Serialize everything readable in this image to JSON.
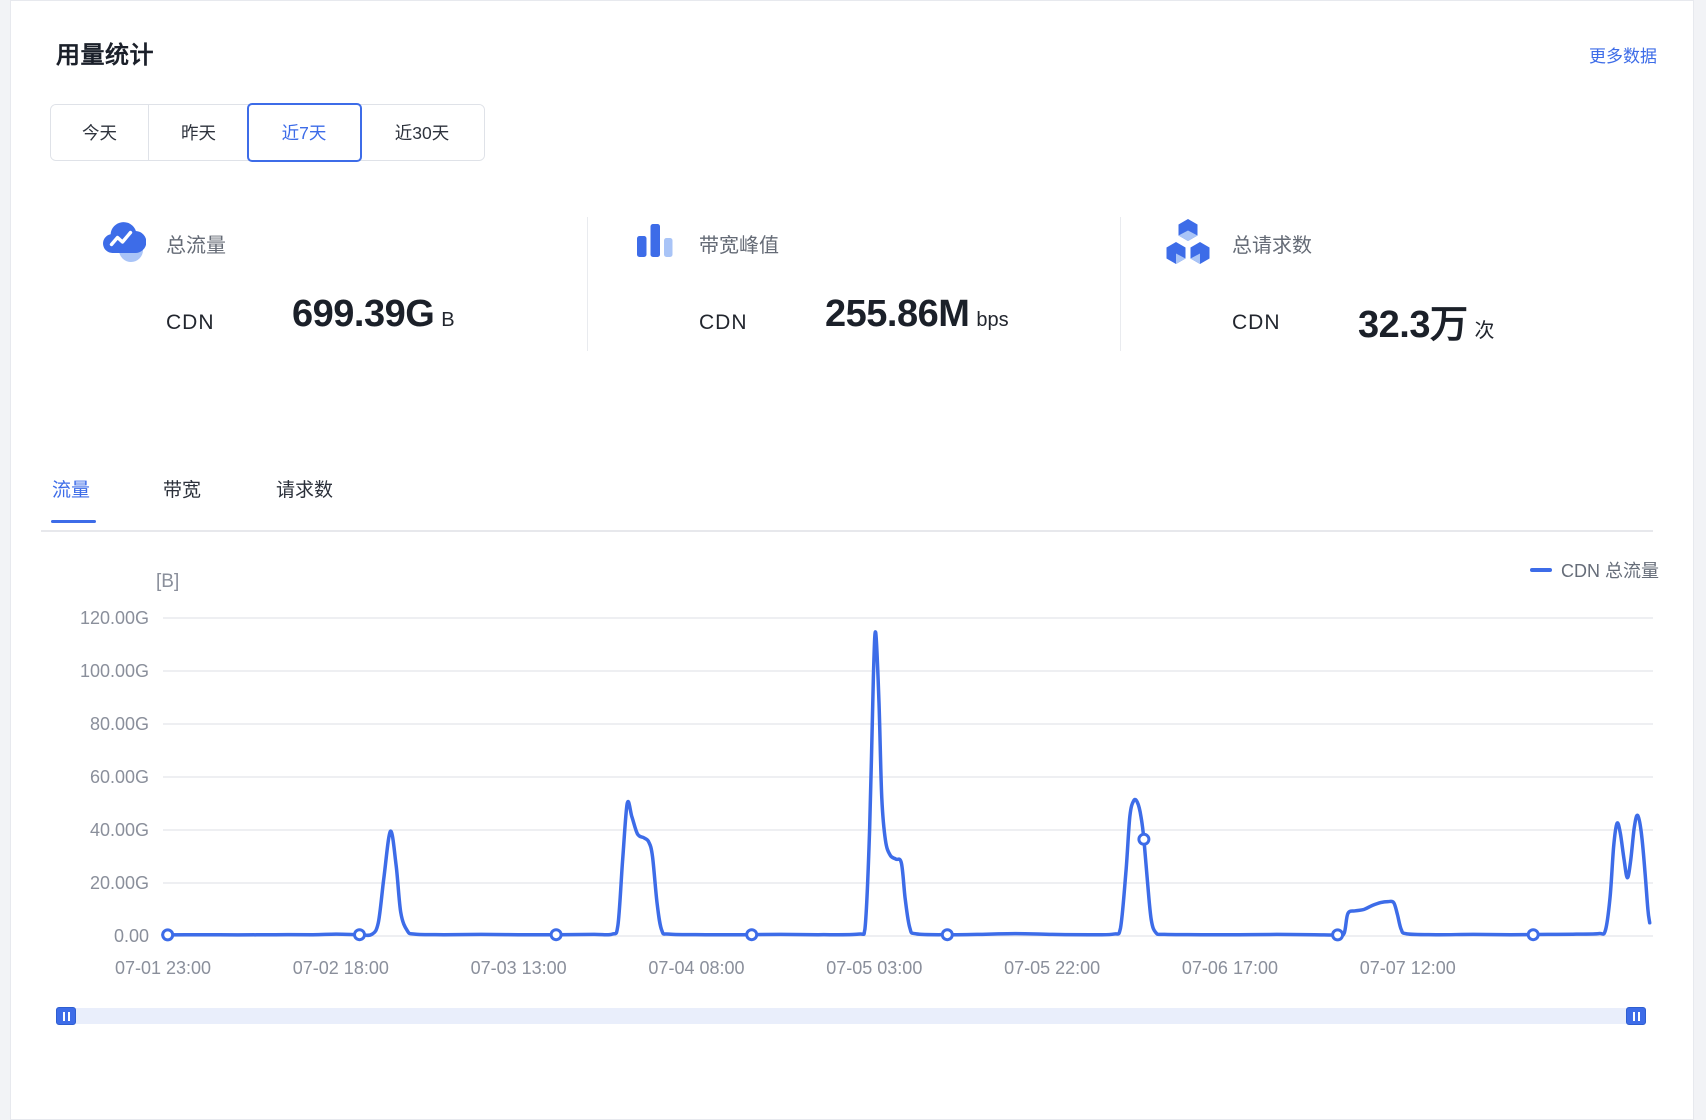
{
  "header": {
    "title": "用量统计",
    "more_link": "更多数据"
  },
  "range_tabs": [
    {
      "label": "今天",
      "selected": false
    },
    {
      "label": "昨天",
      "selected": false
    },
    {
      "label": "近7天",
      "selected": true
    },
    {
      "label": "近30天",
      "selected": false
    }
  ],
  "stats": [
    {
      "icon": "cloud-line-chart-icon",
      "label": "总流量",
      "product": "CDN",
      "value": "699.39G",
      "unit": "B"
    },
    {
      "icon": "bar-chart-icon",
      "label": "带宽峰值",
      "product": "CDN",
      "value": "255.86M",
      "unit": "bps"
    },
    {
      "icon": "cubes-icon",
      "label": "总请求数",
      "product": "CDN",
      "value": "32.3万",
      "unit": "次"
    }
  ],
  "metric_tabs": [
    {
      "label": "流量",
      "selected": true
    },
    {
      "label": "带宽",
      "selected": false
    },
    {
      "label": "请求数",
      "selected": false
    }
  ],
  "chart_data": {
    "type": "line",
    "unit_label": "[B]",
    "value_unit": "GB",
    "grid": true,
    "legend_position": "top-right",
    "legend": [
      {
        "name": "CDN 总流量",
        "color": "#3D6CE8"
      }
    ],
    "y_axis": {
      "min": 0,
      "max": 120,
      "tick_labels": [
        "0.00",
        "20.00G",
        "40.00G",
        "60.00G",
        "80.00G",
        "100.00G",
        "120.00G"
      ]
    },
    "x_axis": {
      "tick_labels": [
        "07-01 23:00",
        "07-02 18:00",
        "07-03 13:00",
        "07-04 08:00",
        "07-05 03:00",
        "07-05 22:00",
        "07-06 17:00",
        "07-07 12:00"
      ],
      "tick_interval_hours": 19,
      "total_hours": 159.2
    },
    "series": [
      {
        "name": "CDN 总流量",
        "color": "#3D6CE8",
        "points": [
          [
            0,
            0.4
          ],
          [
            4,
            0.5
          ],
          [
            8,
            0.4
          ],
          [
            12,
            0.5
          ],
          [
            16,
            0.5
          ],
          [
            18.5,
            0.7
          ],
          [
            21,
            0.5
          ],
          [
            22.3,
            0.6
          ],
          [
            23.0,
            5
          ],
          [
            23.6,
            22
          ],
          [
            24.3,
            39.5
          ],
          [
            24.9,
            27
          ],
          [
            25.4,
            9
          ],
          [
            26.1,
            2
          ],
          [
            26.9,
            0.7
          ],
          [
            30,
            0.5
          ],
          [
            34,
            0.6
          ],
          [
            38,
            0.5
          ],
          [
            42,
            0.5
          ],
          [
            46,
            0.6
          ],
          [
            48,
            0.7
          ],
          [
            48.6,
            4
          ],
          [
            49.1,
            28
          ],
          [
            49.6,
            50
          ],
          [
            50.1,
            45
          ],
          [
            50.7,
            38.5
          ],
          [
            51.4,
            37
          ],
          [
            51.9,
            35.5
          ],
          [
            52.3,
            30
          ],
          [
            52.8,
            12
          ],
          [
            53.3,
            2
          ],
          [
            54.1,
            0.7
          ],
          [
            58,
            0.5
          ],
          [
            62,
            0.5
          ],
          [
            66,
            0.6
          ],
          [
            70,
            0.5
          ],
          [
            74.3,
            0.7
          ],
          [
            75.0,
            2.5
          ],
          [
            75.5,
            40
          ],
          [
            75.9,
            98
          ],
          [
            76.15,
            114.5
          ],
          [
            76.5,
            88
          ],
          [
            76.8,
            52
          ],
          [
            77.2,
            36
          ],
          [
            77.7,
            30.5
          ],
          [
            78.3,
            29
          ],
          [
            78.9,
            27.5
          ],
          [
            79.3,
            14
          ],
          [
            79.8,
            3
          ],
          [
            80.5,
            0.8
          ],
          [
            84,
            0.5
          ],
          [
            87,
            0.6
          ],
          [
            91,
            0.9
          ],
          [
            95,
            0.6
          ],
          [
            99,
            0.5
          ],
          [
            101.6,
            0.7
          ],
          [
            102.3,
            3
          ],
          [
            102.9,
            25
          ],
          [
            103.3,
            45
          ],
          [
            103.7,
            51
          ],
          [
            104.1,
            50.5
          ],
          [
            104.5,
            45
          ],
          [
            104.8,
            36.5
          ],
          [
            105.2,
            20
          ],
          [
            105.6,
            6
          ],
          [
            106.1,
            1.2
          ],
          [
            107,
            0.6
          ],
          [
            111,
            0.5
          ],
          [
            115,
            0.5
          ],
          [
            119,
            0.6
          ],
          [
            123,
            0.5
          ],
          [
            125.5,
            0.4
          ],
          [
            126.2,
            1
          ],
          [
            126.6,
            8.5
          ],
          [
            127.4,
            9.5
          ],
          [
            128.3,
            10
          ],
          [
            129.2,
            11.5
          ],
          [
            130.1,
            12.6
          ],
          [
            130.9,
            13
          ],
          [
            131.5,
            12.6
          ],
          [
            131.9,
            8
          ],
          [
            132.3,
            2.5
          ],
          [
            132.9,
            0.8
          ],
          [
            136,
            0.5
          ],
          [
            140,
            0.6
          ],
          [
            144,
            0.5
          ],
          [
            148,
            0.6
          ],
          [
            151,
            0.7
          ],
          [
            153.4,
            0.9
          ],
          [
            154.1,
            2
          ],
          [
            154.6,
            14
          ],
          [
            155.0,
            34
          ],
          [
            155.35,
            42.5
          ],
          [
            155.7,
            39
          ],
          [
            156.1,
            29
          ],
          [
            156.45,
            22
          ],
          [
            156.8,
            28
          ],
          [
            157.2,
            41
          ],
          [
            157.55,
            45.5
          ],
          [
            157.95,
            39
          ],
          [
            158.35,
            24
          ],
          [
            158.65,
            10
          ],
          [
            158.85,
            5
          ]
        ],
        "markers": [
          [
            0.5,
            0.4
          ],
          [
            21,
            0.5
          ],
          [
            42,
            0.5
          ],
          [
            62.9,
            0.5
          ],
          [
            83.8,
            0.5
          ],
          [
            104.8,
            36.5
          ],
          [
            125.5,
            0.4
          ],
          [
            146.4,
            0.5
          ]
        ]
      }
    ]
  },
  "colors": {
    "accent": "#3D6CE8",
    "accent_light": "#A9C4F7",
    "axis_text": "#8A8F9B",
    "grid_line": "#E9EAEE",
    "slider_track": "#E9EEFB"
  }
}
